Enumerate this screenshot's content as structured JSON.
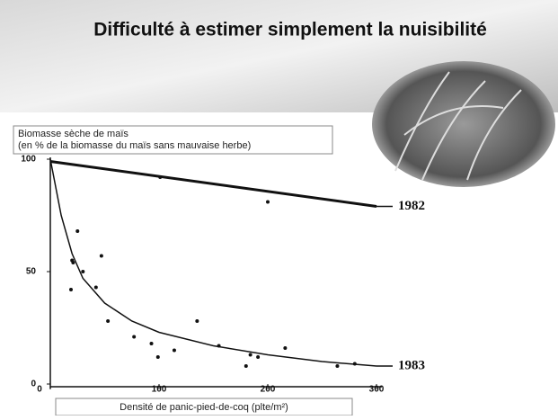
{
  "chart_data": {
    "type": "scatter",
    "title": "Difficulté à estimer simplement la nuisibilité",
    "ylabel": [
      "Biomasse sèche de maïs",
      "(en % de la biomasse du maïs sans mauvaise herbe)"
    ],
    "xlabel": "Densité de panic-pied-de-coq (plte/m²)",
    "xlim": [
      0,
      300
    ],
    "ylim": [
      0,
      100
    ],
    "xticks": [
      0,
      100,
      200,
      300
    ],
    "yticks": [
      0,
      50,
      100
    ],
    "points": {
      "color": "#111111",
      "x": [
        20,
        21,
        19,
        25,
        30,
        42,
        47,
        53,
        77,
        93,
        99,
        114,
        135,
        155,
        180,
        184,
        191,
        216,
        200,
        264,
        280,
        101
      ],
      "values": [
        55,
        54,
        42,
        68,
        50,
        43,
        57,
        28,
        21,
        18,
        12,
        15,
        28,
        17,
        8,
        13,
        12,
        16,
        81,
        8,
        9,
        92
      ]
    },
    "series": [
      {
        "name": "1982",
        "color": "#111111",
        "x": [
          0,
          300
        ],
        "values": [
          99,
          79
        ]
      },
      {
        "name": "1983",
        "color": "#111111",
        "x": [
          0,
          10,
          20,
          30,
          50,
          75,
          100,
          150,
          200,
          250,
          300
        ],
        "values": [
          100,
          75,
          58,
          47,
          36,
          28,
          23,
          17,
          13,
          10,
          8
        ]
      }
    ]
  }
}
